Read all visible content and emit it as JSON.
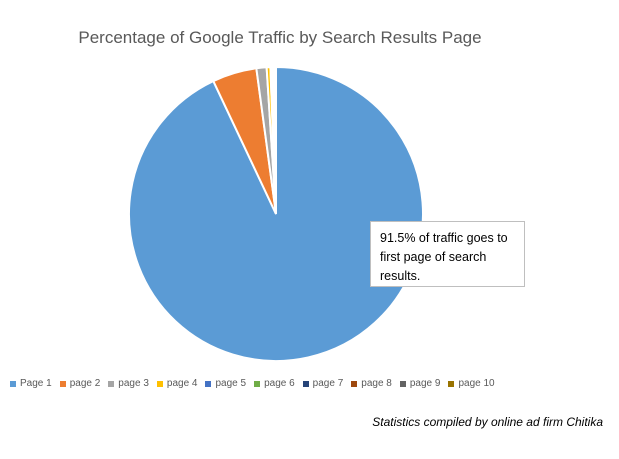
{
  "title": "Percentage of Google Traffic by Search Results Page",
  "annotation": "91.5% of traffic goes to first page of search results.",
  "footnote": "Statistics compiled by online ad firm Chitika",
  "chart_data": {
    "type": "pie",
    "title": "Percentage of Google Traffic by Search Results Page",
    "slices": [
      {
        "label": "Page 1",
        "value": 91.5,
        "color": "#5B9BD5"
      },
      {
        "label": "page 2",
        "value": 4.8,
        "color": "#ED7D31"
      },
      {
        "label": "page 3",
        "value": 1.1,
        "color": "#A5A5A5"
      },
      {
        "label": "page 4",
        "value": 0.4,
        "color": "#FFC000"
      },
      {
        "label": "page 5",
        "value": 0.1,
        "color": "#4472C4"
      },
      {
        "label": "page 6",
        "value": 0.1,
        "color": "#70AD47"
      },
      {
        "label": "page 7",
        "value": 0.1,
        "color": "#264478"
      },
      {
        "label": "page 8",
        "value": 0.1,
        "color": "#9E480E"
      },
      {
        "label": "page 9",
        "value": 0.1,
        "color": "#636363"
      },
      {
        "label": "page 10",
        "value": 0.1,
        "color": "#997300"
      }
    ],
    "legend_position": "bottom"
  }
}
